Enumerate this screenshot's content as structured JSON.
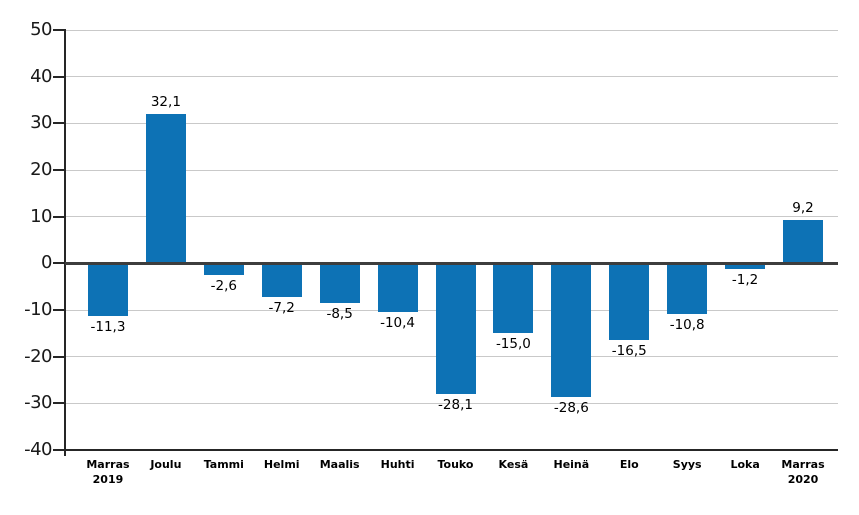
{
  "chart_data": {
    "type": "bar",
    "title": "",
    "xlabel": "",
    "ylabel": "",
    "categories": [
      "Marras\n2019",
      "Joulu",
      "Tammi",
      "Helmi",
      "Maalis",
      "Huhti",
      "Touko",
      "Kesä",
      "Heinä",
      "Elo",
      "Syys",
      "Loka",
      "Marras\n2020"
    ],
    "values": [
      -11.3,
      32.1,
      -2.6,
      -7.2,
      -8.5,
      -10.4,
      -28.1,
      -15.0,
      -28.6,
      -16.5,
      -10.8,
      -1.2,
      9.2
    ],
    "data_labels": [
      "-11,3",
      "32,1",
      "-2,6",
      "-7,2",
      "-8,5",
      "-10,4",
      "-28,1",
      "-15,0",
      "-28,6",
      "-16,5",
      "-10,8",
      "-1,2",
      "9,2"
    ],
    "ylim": [
      -40,
      50
    ],
    "yticks": [
      50,
      40,
      30,
      20,
      10,
      0,
      -10,
      -20,
      -30,
      -40
    ],
    "ytick_labels": [
      "50",
      "40",
      "30",
      "20",
      "10",
      "0",
      "-10",
      "-20",
      "-30",
      "-40"
    ],
    "grid": true,
    "legend_position": "none",
    "colors": {
      "bar": "#0d72b5",
      "gridline": "#c9c9c9",
      "zero_line": "#3d3d3d",
      "axis": "#262626",
      "text": "#000000",
      "axis_text": "#1a1a1a",
      "background": "#ffffff"
    }
  }
}
